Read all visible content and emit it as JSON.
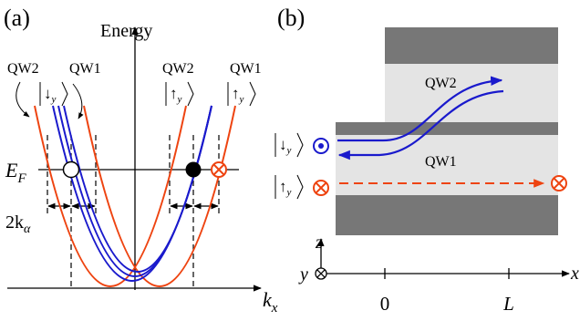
{
  "panels": {
    "a": {
      "label": "(a)",
      "y_axis_label": "Energy",
      "x_axis_label": {
        "main": "k",
        "sub": "x"
      },
      "fermi_label": {
        "main": "E",
        "sub": "F"
      },
      "splitting_label": {
        "main": "2k",
        "sub": "α"
      },
      "band_labels": {
        "left_qw2": "QW2",
        "left_qw1": "QW1",
        "right_qw2": "QW2",
        "right_qw1": "QW1"
      },
      "spin_kets": {
        "left_down": {
          "arrow": "↓",
          "sub": "y"
        },
        "right_up_qw2": {
          "arrow": "↑",
          "sub": "y"
        },
        "right_up_qw1": {
          "arrow": "↑",
          "sub": "y"
        }
      }
    },
    "b": {
      "label": "(b)",
      "region_labels": {
        "top": "QW2",
        "bottom": "QW1"
      },
      "spin_kets": {
        "down": {
          "arrow": "↓",
          "sub": "y"
        },
        "up": {
          "arrow": "↑",
          "sub": "y"
        }
      },
      "axes": {
        "x": "x",
        "y": "y",
        "z": "z"
      },
      "tick_labels": {
        "origin": "0",
        "end": "L"
      }
    }
  },
  "colors": {
    "qw1_band": "#ee4411",
    "qw2_band": "#1a1acc",
    "gate": "#777777",
    "well": "#e4e4e4",
    "barrier": "#777777"
  }
}
